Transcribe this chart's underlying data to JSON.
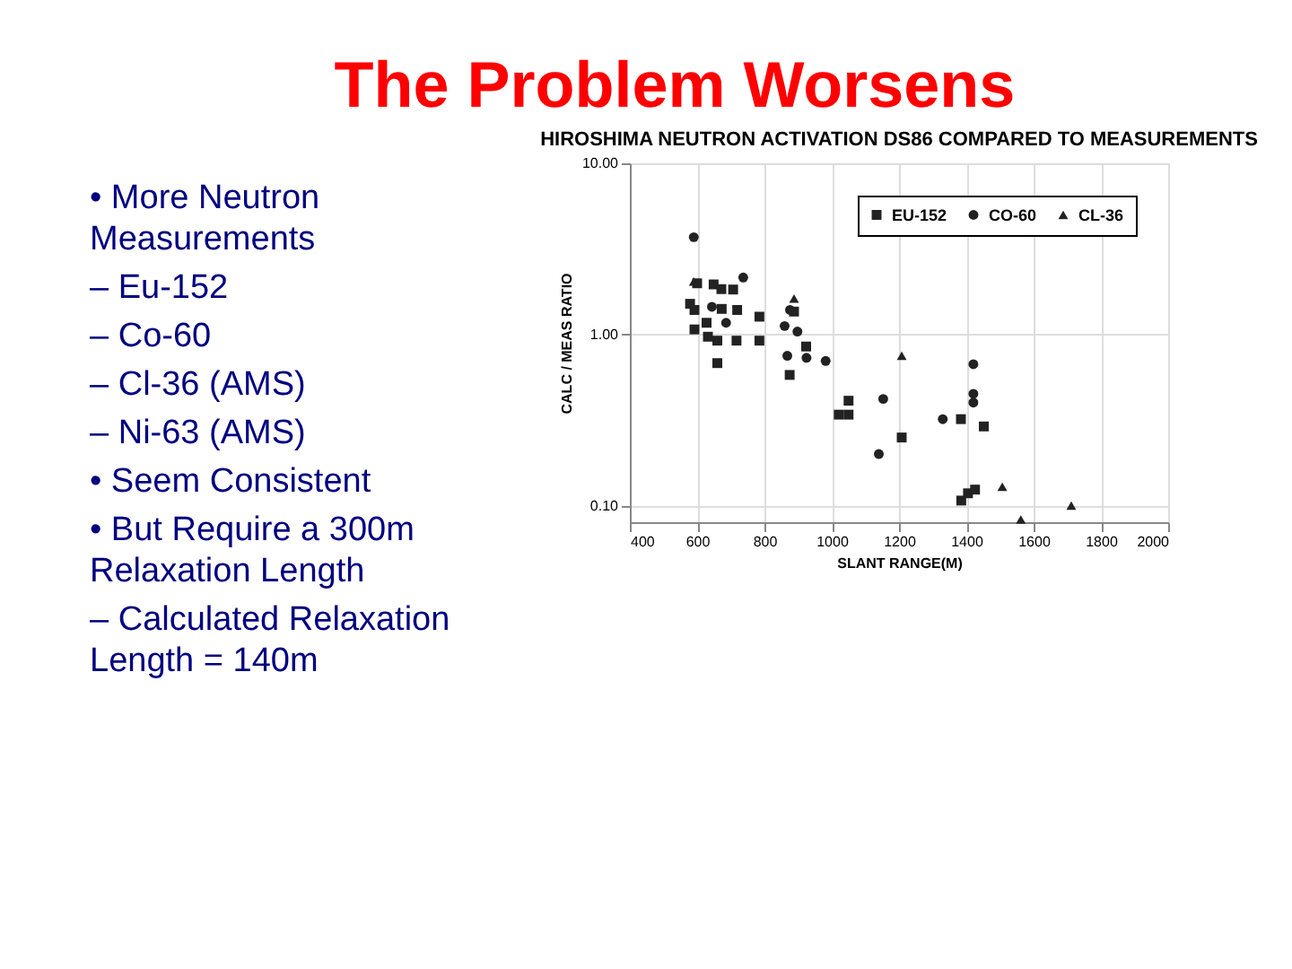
{
  "chart_data": {
    "type": "scatter",
    "title": "The Problem Worsens",
    "subtitle": "HIROSHIMA NEUTRON ACTIVATION DS86 COMPARED TO MEASUREMENTS",
    "xlabel": "SLANT RANGE(M)",
    "ylabel": "CALC / MEAS RATIO",
    "annotations": [
      "• More Neutron Measurements",
      "– Eu-152",
      "– Co-60",
      "– Cl-36 (AMS)",
      "– Ni-63 (AMS)",
      "• Seem Consistent",
      "• But Require a 300m Relaxation Length",
      "– Calculated Relaxation Length = 140m"
    ],
    "log": "y",
    "grid": true,
    "legend": "top right",
    "xlim": [
      400,
      2000
    ],
    "xticks": [
      400,
      600,
      800,
      1000,
      1200,
      1400,
      1600,
      1800,
      2000
    ],
    "ylim": [
      0.08,
      10
    ],
    "yticks": [
      {
        "value": 0.1,
        "label": "0.10"
      },
      {
        "value": 1,
        "label": "1.00"
      },
      {
        "value": 10,
        "label": "10.00"
      }
    ],
    "series": [
      {
        "name": "EU-152",
        "color": "#222222",
        "marker": "square",
        "x": [
          579,
          600,
          592,
          592,
          628,
          649,
          672,
          707,
          719,
          632,
          660,
          660,
          717,
          785,
          785,
          888,
          875,
          924,
          1021,
          1050,
          1050,
          673,
          1208,
          1384,
          1452,
          1385,
          1405,
          1426
        ],
        "values": [
          1.51,
          1.99,
          1.07,
          1.39,
          1.17,
          1.96,
          1.84,
          1.83,
          1.39,
          0.97,
          0.92,
          0.68,
          0.92,
          1.27,
          0.92,
          1.36,
          0.58,
          0.85,
          0.34,
          0.41,
          0.34,
          1.41,
          0.25,
          0.32,
          0.29,
          0.107,
          0.118,
          0.124
        ]
      },
      {
        "name": "CO-60",
        "color": "#222222",
        "marker": "circle",
        "x": [
          590,
          737,
          860,
          898,
          868,
          876,
          925,
          982,
          686,
          644,
          1153,
          1140,
          1330,
          1421,
          1421,
          1421
        ],
        "values": [
          3.7,
          2.15,
          1.12,
          1.04,
          0.75,
          1.39,
          0.73,
          0.7,
          1.17,
          1.45,
          0.42,
          0.2,
          0.32,
          0.67,
          0.45,
          0.4
        ]
      },
      {
        "name": "CL-36",
        "color": "#222222",
        "marker": "triangle",
        "x": [
          590,
          888,
          1208,
          1507,
          1562,
          1712
        ],
        "values": [
          2.04,
          1.62,
          0.75,
          0.129,
          0.083,
          0.1
        ]
      }
    ]
  }
}
